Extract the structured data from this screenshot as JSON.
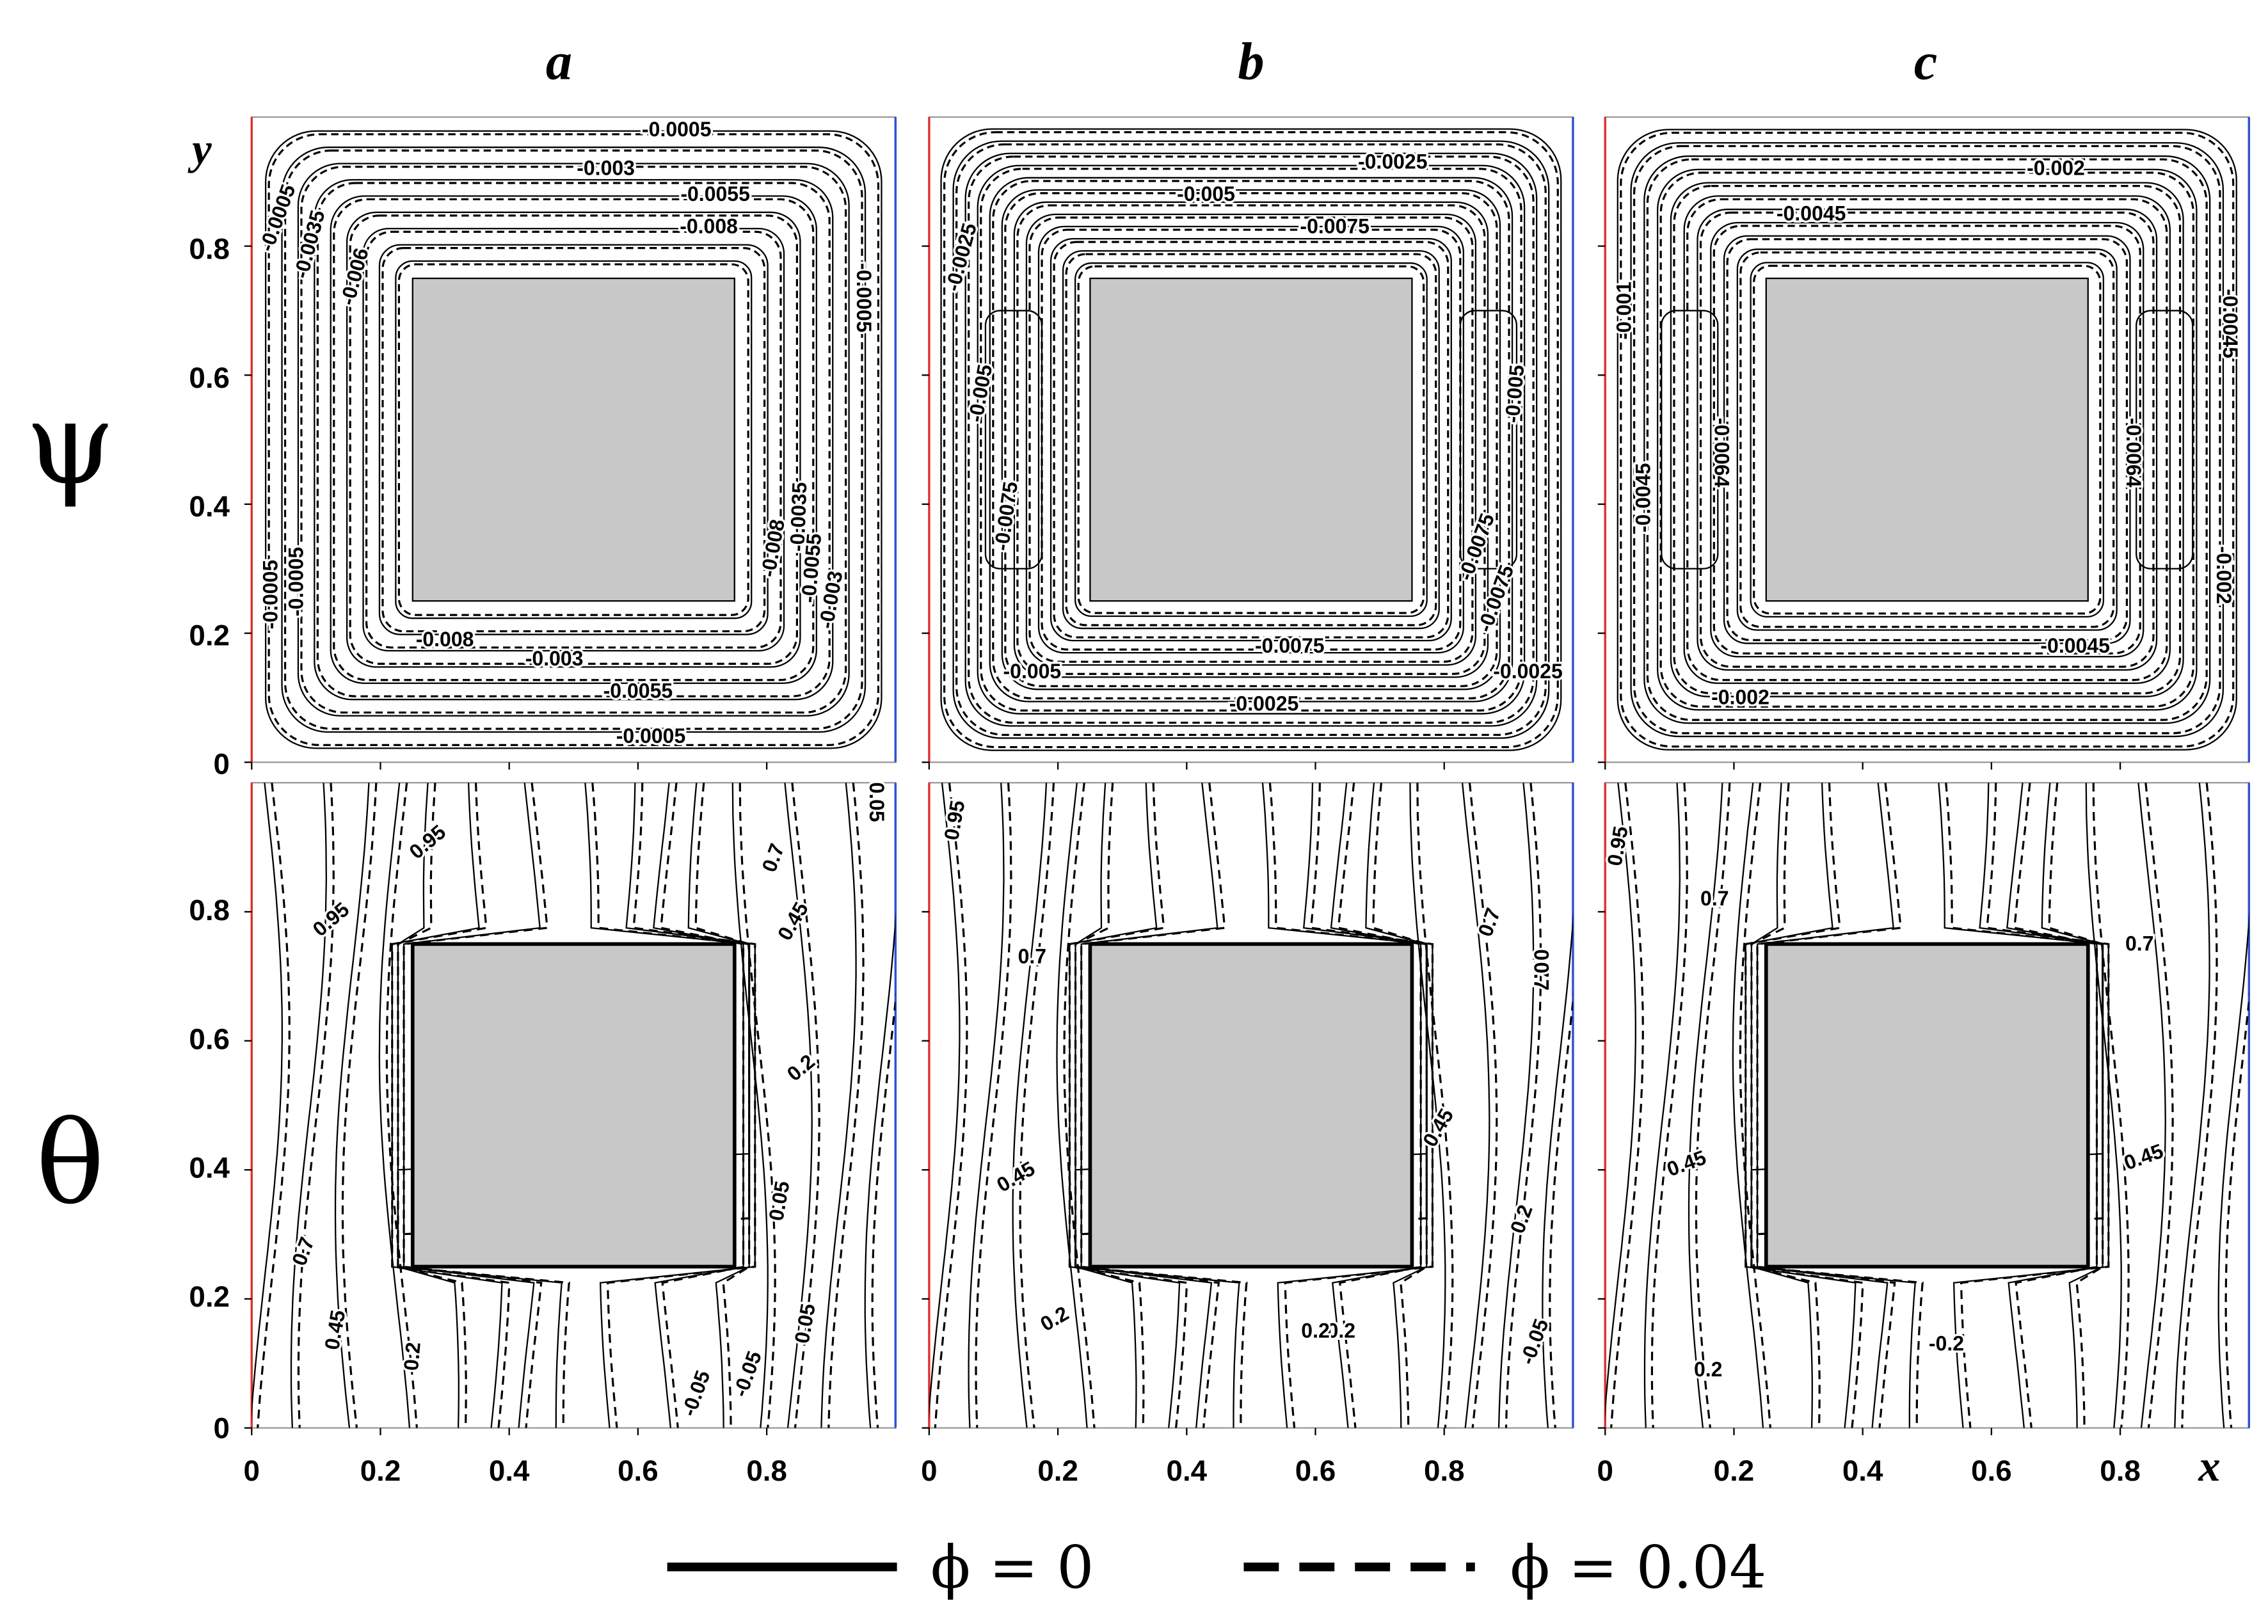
{
  "columns": [
    "a",
    "b",
    "c"
  ],
  "rows": [
    "ψ",
    "θ"
  ],
  "y_axis_label": "y",
  "x_axis_label": "x",
  "y_ticks": [
    "0",
    "0.2",
    "0.4",
    "0.6",
    "0.8"
  ],
  "x_ticks": [
    "0",
    "0.2",
    "0.4",
    "0.6",
    "0.8"
  ],
  "legend": [
    {
      "symbol": "ϕ = 0",
      "style": "solid"
    },
    {
      "symbol": "ϕ = 0.04",
      "style": "dashed"
    }
  ],
  "colors": {
    "block": "#c8c8c8",
    "hot_wall": "#e03030",
    "cold_wall": "#3050d0",
    "line": "#000000"
  },
  "chart_data": [
    {
      "type": "contour",
      "panel": "a",
      "quantity": "ψ",
      "xlim": [
        0,
        1
      ],
      "ylim": [
        0,
        1
      ],
      "block": {
        "x": [
          0.25,
          0.75
        ],
        "y": [
          0.25,
          0.75
        ]
      },
      "n_levels": 9,
      "contour_labels": [
        "-0.0005",
        "-0.003",
        "-0.0055",
        "-0.008",
        "-0.0005",
        "-0.003",
        "-0.0055",
        "-0.008",
        "-0.0005",
        "-0.0005",
        "-0.0035",
        "-0.006",
        "-0.0005",
        "-0.0035",
        "-0.008",
        "-0.0055",
        "-0.003",
        "-0.0005"
      ]
    },
    {
      "type": "contour",
      "panel": "b",
      "quantity": "ψ",
      "xlim": [
        0,
        1
      ],
      "ylim": [
        0,
        1
      ],
      "block": {
        "x": [
          0.25,
          0.75
        ],
        "y": [
          0.25,
          0.75
        ]
      },
      "n_levels": 12,
      "contour_labels": [
        "-0.0025",
        "-0.005",
        "-0.0075",
        "-0.0025",
        "-0.005",
        "-0.0075",
        "-0.005",
        "-0.0075",
        "-0.0075",
        "-0.0025",
        "-0.0075",
        "-0.005",
        "-0.0025"
      ]
    },
    {
      "type": "contour",
      "panel": "c",
      "quantity": "ψ",
      "xlim": [
        0,
        1
      ],
      "ylim": [
        0,
        1
      ],
      "block": {
        "x": [
          0.25,
          0.75
        ],
        "y": [
          0.25,
          0.75
        ]
      },
      "n_levels": 11,
      "contour_labels": [
        "-0.002",
        "-0.0045",
        "-0.001",
        "-0.0064",
        "-0.0045",
        "-0.0064",
        "-0.0045",
        "-0.002",
        "-0.0045",
        "-0.002"
      ]
    },
    {
      "type": "contour",
      "panel": "a",
      "quantity": "θ",
      "xlim": [
        0,
        1
      ],
      "ylim": [
        0,
        1
      ],
      "block": {
        "x": [
          0.25,
          0.75
        ],
        "y": [
          0.25,
          0.75
        ]
      },
      "contour_labels": [
        "0.95",
        "0.95",
        "0.7",
        "0.45",
        "0.2",
        "0.7",
        "0.45",
        "0.2",
        "0.05",
        "-0.05",
        "0.05",
        "-0.05",
        "0.05"
      ]
    },
    {
      "type": "contour",
      "panel": "b",
      "quantity": "θ",
      "xlim": [
        0,
        1
      ],
      "ylim": [
        0,
        1
      ],
      "block": {
        "x": [
          0.25,
          0.75
        ],
        "y": [
          0.25,
          0.75
        ]
      },
      "contour_labels": [
        "0.95",
        "0.7",
        "0.45",
        "0.7",
        "0.2",
        "0.2",
        "0.7",
        "0.2",
        "0.45",
        "0.2",
        "-0.05",
        "0.7"
      ]
    },
    {
      "type": "contour",
      "panel": "c",
      "quantity": "θ",
      "xlim": [
        0,
        1
      ],
      "ylim": [
        0,
        1
      ],
      "block": {
        "x": [
          0.25,
          0.75
        ],
        "y": [
          0.25,
          0.75
        ]
      },
      "contour_labels": [
        "0.95",
        "0.7",
        "0.7",
        "0.45",
        "0.45",
        "-0.2",
        "0.2"
      ]
    }
  ]
}
